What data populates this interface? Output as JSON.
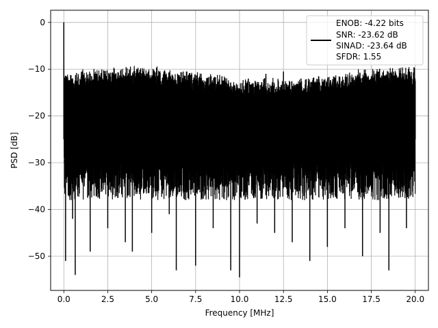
{
  "chart_data": {
    "type": "line",
    "title": "",
    "xlabel": "Frequency [MHz]",
    "ylabel": "PSD [dB]",
    "xlim": [
      -0.75,
      20.75
    ],
    "ylim": [
      -57.3,
      2.6
    ],
    "xticks": [
      0.0,
      2.5,
      5.0,
      7.5,
      10.0,
      12.5,
      15.0,
      17.5,
      20.0
    ],
    "xtick_labels": [
      "0.0",
      "2.5",
      "5.0",
      "7.5",
      "10.0",
      "12.5",
      "15.0",
      "17.5",
      "20.0"
    ],
    "yticks": [
      0,
      -10,
      -20,
      -30,
      -40,
      -50
    ],
    "ytick_labels": [
      "0",
      "−10",
      "−20",
      "−30",
      "−40",
      "−50"
    ],
    "grid": true,
    "legend_position": "top-right",
    "line_color": "#000000",
    "series": [
      {
        "name": "",
        "legend_lines": [
          "ENOB: -4.22 bits",
          "SNR: -23.62 dB",
          "SINAD: -23.64 dB",
          "SFDR: 1.55"
        ],
        "x": [
          0.0,
          0.03,
          0.05,
          0.1,
          0.15,
          0.25,
          0.5,
          0.65,
          1.0,
          1.5,
          2.0,
          2.5,
          3.0,
          3.5,
          3.9,
          4.5,
          5.0,
          5.5,
          6.0,
          6.4,
          7.0,
          7.5,
          7.8,
          8.5,
          9.0,
          9.5,
          10.0,
          10.5,
          11.0,
          11.5,
          12.0,
          12.5,
          13.0,
          13.5,
          14.0,
          14.5,
          15.0,
          15.5,
          16.0,
          16.5,
          17.0,
          17.5,
          18.0,
          18.5,
          19.0,
          19.5,
          20.0
        ],
        "y": [
          0.0,
          -29.5,
          -13.0,
          -51.0,
          -16.0,
          -37.0,
          -42.0,
          -54.0,
          -14.5,
          -49.0,
          -15.0,
          -44.0,
          -13.5,
          -47.0,
          -49.0,
          -13.0,
          -45.0,
          -12.5,
          -41.0,
          -53.0,
          -10.5,
          -52.0,
          -12.0,
          -44.0,
          -11.5,
          -53.0,
          -54.5,
          -12.0,
          -43.0,
          -11.0,
          -45.0,
          -10.5,
          -47.0,
          -12.0,
          -51.0,
          -11.5,
          -48.0,
          -13.0,
          -44.0,
          -12.5,
          -50.0,
          -11.5,
          -45.0,
          -53.0,
          -12.0,
          -44.0,
          -12.5
        ]
      }
    ]
  }
}
